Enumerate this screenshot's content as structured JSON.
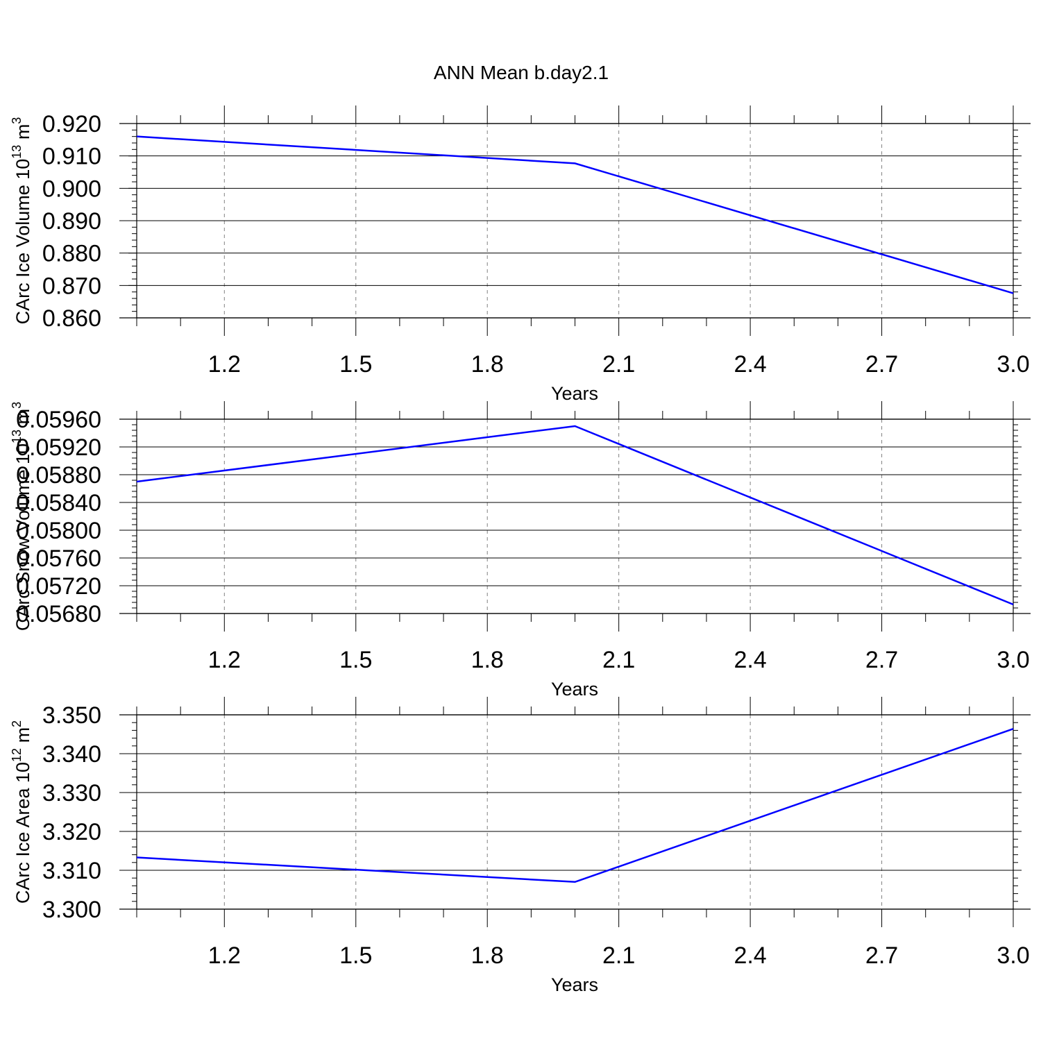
{
  "title": "ANN Mean b.day2.1",
  "colors": {
    "line": "#0000ff",
    "axis": "#000000",
    "grid": "#808080"
  },
  "chart_data": [
    {
      "type": "line",
      "ylabel": {
        "main": "CArc Ice Volume 10",
        "exp": "13",
        "unit": " m",
        "unit_exp": "3"
      },
      "xlabel": "Years",
      "x": [
        1.0,
        2.0,
        3.0
      ],
      "series": [
        {
          "values": [
            0.916,
            0.9077,
            0.8676
          ]
        }
      ],
      "xlim": [
        1.0,
        3.0
      ],
      "ylim": [
        0.86,
        0.92
      ],
      "xticks": [
        "1.2",
        "1.5",
        "1.8",
        "2.1",
        "2.4",
        "2.7",
        "3.0"
      ],
      "yticks": [
        "0.860",
        "0.870",
        "0.880",
        "0.890",
        "0.900",
        "0.910",
        "0.920"
      ],
      "grid": "vertical-dashed"
    },
    {
      "type": "line",
      "ylabel": {
        "main": "CArc Snow Volume 10",
        "exp": "13",
        "unit": " m",
        "unit_exp": "3"
      },
      "xlabel": "Years",
      "x": [
        1.0,
        2.0,
        3.0
      ],
      "series": [
        {
          "values": [
            0.0587,
            0.0595,
            0.05693
          ]
        }
      ],
      "xlim": [
        1.0,
        3.0
      ],
      "ylim": [
        0.0568,
        0.0596
      ],
      "xticks": [
        "1.2",
        "1.5",
        "1.8",
        "2.1",
        "2.4",
        "2.7",
        "3.0"
      ],
      "yticks": [
        "0.05680",
        "0.05720",
        "0.05760",
        "0.05800",
        "0.05840",
        "0.05880",
        "0.05920",
        "0.05960"
      ],
      "grid": "vertical-dashed"
    },
    {
      "type": "line",
      "ylabel": {
        "main": "CArc Ice Area 10",
        "exp": "12",
        "unit": " m",
        "unit_exp": "2"
      },
      "xlabel": "Years",
      "x": [
        1.0,
        2.0,
        3.0
      ],
      "series": [
        {
          "values": [
            3.3133,
            3.307,
            3.3464
          ]
        }
      ],
      "xlim": [
        1.0,
        3.0
      ],
      "ylim": [
        3.3,
        3.35
      ],
      "xticks": [
        "1.2",
        "1.5",
        "1.8",
        "2.1",
        "2.4",
        "2.7",
        "3.0"
      ],
      "yticks": [
        "3.300",
        "3.310",
        "3.320",
        "3.330",
        "3.340",
        "3.350"
      ],
      "grid": "vertical-dashed"
    }
  ]
}
